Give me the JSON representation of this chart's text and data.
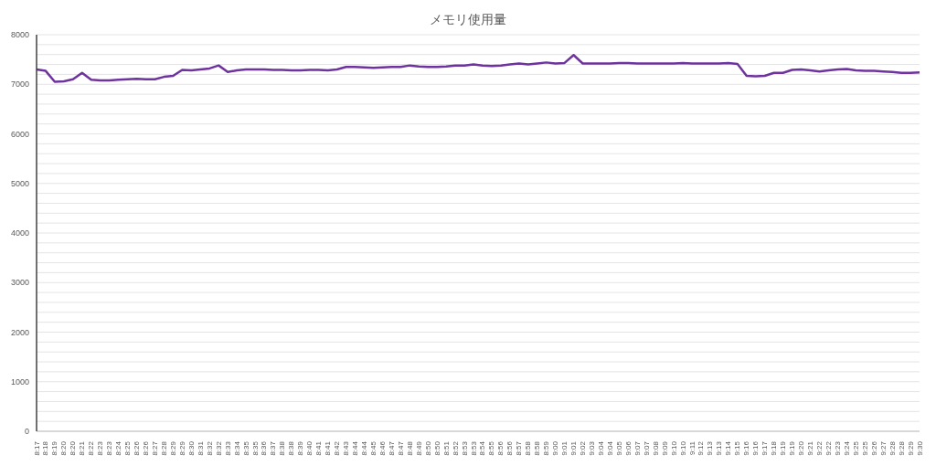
{
  "chart_data": {
    "type": "line",
    "title": "メモリ使用量",
    "categories": [
      "8:17",
      "8:18",
      "8:19",
      "8:20",
      "8:20",
      "8:21",
      "8:22",
      "8:23",
      "8:23",
      "8:24",
      "8:25",
      "8:26",
      "8:26",
      "8:27",
      "8:28",
      "8:29",
      "8:29",
      "8:30",
      "8:31",
      "8:32",
      "8:32",
      "8:33",
      "8:34",
      "8:35",
      "8:35",
      "8:36",
      "8:37",
      "8:38",
      "8:38",
      "8:39",
      "8:40",
      "8:41",
      "8:41",
      "8:42",
      "8:43",
      "8:44",
      "8:44",
      "8:45",
      "8:46",
      "8:47",
      "8:47",
      "8:48",
      "8:49",
      "8:50",
      "8:50",
      "8:51",
      "8:52",
      "8:53",
      "8:53",
      "8:54",
      "8:55",
      "8:56",
      "8:56",
      "8:57",
      "8:58",
      "8:58",
      "8:59",
      "9:00",
      "9:01",
      "9:01",
      "9:02",
      "9:03",
      "9:04",
      "9:04",
      "9:05",
      "9:06",
      "9:07",
      "9:07",
      "9:08",
      "9:09",
      "9:10",
      "9:10",
      "9:11",
      "9:12",
      "9:13",
      "9:13",
      "9:14",
      "9:15",
      "9:16",
      "9:16",
      "9:17",
      "9:18",
      "9:19",
      "9:19",
      "9:20",
      "9:21",
      "9:22",
      "9:22",
      "9:23",
      "9:24",
      "9:25",
      "9:25",
      "9:26",
      "9:27",
      "9:28",
      "9:28",
      "9:29",
      "9:30"
    ],
    "series": [
      {
        "color": "#6f339f",
        "values": [
          7300,
          7270,
          7050,
          7060,
          7100,
          7230,
          7090,
          7080,
          7080,
          7090,
          7100,
          7110,
          7100,
          7100,
          7150,
          7170,
          7290,
          7280,
          7300,
          7320,
          7380,
          7250,
          7280,
          7300,
          7300,
          7300,
          7290,
          7290,
          7280,
          7280,
          7290,
          7290,
          7280,
          7300,
          7350,
          7350,
          7340,
          7330,
          7340,
          7350,
          7350,
          7380,
          7360,
          7350,
          7350,
          7360,
          7380,
          7380,
          7400,
          7380,
          7370,
          7380,
          7400,
          7420,
          7400,
          7420,
          7440,
          7420,
          7430,
          7590,
          7420,
          7420,
          7420,
          7420,
          7430,
          7430,
          7420,
          7420,
          7420,
          7420,
          7420,
          7430,
          7420,
          7420,
          7420,
          7420,
          7430,
          7410,
          7170,
          7160,
          7170,
          7230,
          7230,
          7290,
          7300,
          7280,
          7260,
          7280,
          7300,
          7310,
          7280,
          7270,
          7270,
          7260,
          7250,
          7230,
          7230,
          7240
        ]
      }
    ],
    "ylim": [
      0,
      8000
    ],
    "yticks": [
      0,
      {
        "value": 200,
        "label": null
      },
      {
        "value": 400,
        "label": null
      },
      {
        "value": 600,
        "label": null
      },
      {
        "value": 800,
        "label": null
      },
      1000,
      {
        "value": 1200,
        "label": null
      },
      {
        "value": 1400,
        "label": null
      },
      {
        "value": 1600,
        "label": null
      },
      {
        "value": 1800,
        "label": null
      },
      2000,
      {
        "value": 2200,
        "label": null
      },
      {
        "value": 2400,
        "label": null
      },
      {
        "value": 2600,
        "label": null
      },
      {
        "value": 2800,
        "label": null
      },
      3000,
      {
        "value": 3200,
        "label": null
      },
      {
        "value": 3400,
        "label": null
      },
      {
        "value": 3600,
        "label": null
      },
      {
        "value": 3800,
        "label": null
      },
      4000,
      {
        "value": 4200,
        "label": null
      },
      {
        "value": 4400,
        "label": null
      },
      {
        "value": 4600,
        "label": null
      },
      {
        "value": 4800,
        "label": null
      },
      5000,
      {
        "value": 5200,
        "label": null
      },
      {
        "value": 5400,
        "label": null
      },
      {
        "value": 5600,
        "label": null
      },
      {
        "value": 5800,
        "label": null
      },
      6000,
      {
        "value": 6200,
        "label": null
      },
      {
        "value": 6400,
        "label": null
      },
      {
        "value": 6600,
        "label": null
      },
      {
        "value": 6800,
        "label": null
      },
      7000,
      {
        "value": 7200,
        "label": null
      },
      {
        "value": 7400,
        "label": null
      },
      {
        "value": 7600,
        "label": null
      },
      {
        "value": 7800,
        "label": null
      },
      8000
    ],
    "grid": "y",
    "legend": false,
    "marker": "none",
    "line_style": "solid"
  }
}
